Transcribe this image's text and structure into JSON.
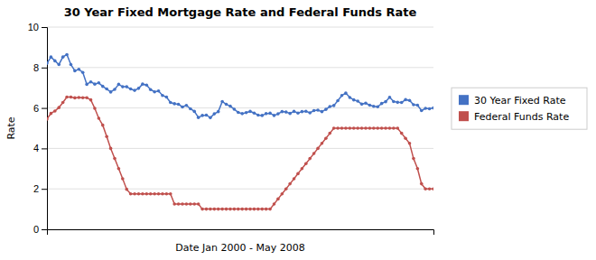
{
  "chart_data": {
    "type": "line",
    "title": "30 Year Fixed Mortgage Rate and Federal Funds Rate",
    "xlabel": "Date Jan 2000 - May 2008",
    "ylabel": "Rate",
    "categories": [
      null,
      null,
      null,
      null,
      null,
      null,
      null,
      null,
      null,
      null,
      null,
      null,
      null,
      null,
      null,
      null,
      null,
      null,
      null,
      null,
      null,
      null,
      null,
      null,
      null,
      null,
      null,
      null,
      null,
      null,
      null,
      null,
      null,
      null,
      null,
      null,
      null,
      null,
      null,
      null,
      null,
      null,
      null,
      null,
      null,
      null,
      null,
      null,
      null,
      null,
      null,
      null,
      null,
      null,
      null,
      null,
      null,
      null,
      null,
      null,
      null,
      null,
      null,
      null,
      null,
      null,
      null,
      null,
      null,
      null,
      null,
      null,
      null,
      null,
      null,
      null,
      null,
      null,
      null,
      null,
      null,
      null,
      null,
      null,
      null,
      null,
      null,
      null,
      null,
      null,
      null,
      null,
      null,
      null,
      null,
      null,
      null,
      null
    ],
    "series": [
      {
        "name": "30 Year Fixed Rate",
        "color": "#4472C4",
        "marker": "circle",
        "values": [
          8.21,
          8.52,
          8.33,
          8.15,
          8.52,
          8.64,
          8.15,
          7.84,
          7.91,
          7.76,
          7.17,
          7.29,
          7.18,
          7.24,
          7.07,
          6.94,
          6.79,
          6.92,
          7.17,
          7.05,
          7.05,
          6.94,
          6.87,
          6.97,
          7.18,
          7.13,
          6.91,
          6.8,
          6.84,
          6.62,
          6.54,
          6.27,
          6.21,
          6.18,
          6.05,
          6.13,
          5.96,
          5.83,
          5.53,
          5.63,
          5.65,
          5.52,
          5.71,
          5.82,
          6.32,
          6.18,
          6.09,
          5.94,
          5.78,
          5.72,
          5.77,
          5.83,
          5.75,
          5.65,
          5.63,
          5.72,
          5.74,
          5.63,
          5.71,
          5.82,
          5.8,
          5.73,
          5.83,
          5.75,
          5.82,
          5.84,
          5.76,
          5.87,
          5.89,
          5.82,
          5.93,
          6.07,
          6.12,
          6.36,
          6.62,
          6.74,
          6.52,
          6.4,
          6.34,
          6.19,
          6.24,
          6.14,
          6.08,
          6.06,
          6.22,
          6.31,
          6.53,
          6.32,
          6.28,
          6.27,
          6.41,
          6.37,
          6.16,
          6.14,
          5.87,
          5.98,
          5.96,
          6.0
        ]
      },
      {
        "name": "Federal Funds Rate",
        "color": "#C0504D",
        "marker": "circle",
        "values": [
          5.45,
          5.73,
          5.85,
          6.02,
          6.27,
          6.54,
          6.54,
          6.5,
          6.52,
          6.51,
          6.51,
          6.4,
          5.98,
          5.49,
          5.15,
          4.59,
          4.0,
          3.5,
          3.0,
          2.5,
          1.98,
          1.75,
          1.75,
          1.75,
          1.75,
          1.75,
          1.75,
          1.75,
          1.75,
          1.75,
          1.75,
          1.75,
          1.25,
          1.25,
          1.25,
          1.25,
          1.25,
          1.25,
          1.25,
          1.0,
          1.0,
          1.0,
          1.0,
          1.0,
          1.0,
          1.0,
          1.0,
          1.0,
          1.0,
          1.0,
          1.0,
          1.0,
          1.0,
          1.0,
          1.0,
          1.0,
          1.0,
          1.25,
          1.5,
          1.75,
          2.0,
          2.25,
          2.5,
          2.75,
          3.0,
          3.25,
          3.5,
          3.75,
          4.0,
          4.25,
          4.5,
          4.75,
          5.0,
          5.0,
          5.0,
          5.0,
          5.0,
          5.0,
          5.0,
          5.0,
          5.0,
          5.0,
          5.0,
          5.0,
          5.0,
          5.0,
          5.0,
          5.0,
          5.0,
          4.75,
          4.5,
          4.25,
          3.5,
          3.0,
          2.25,
          2.0,
          2.0,
          2.0
        ]
      }
    ],
    "ylim": [
      0,
      10
    ],
    "yticks": [
      0,
      2,
      4,
      6,
      8,
      10
    ],
    "grid": true,
    "legend": "right",
    "tick_labels": "y"
  }
}
